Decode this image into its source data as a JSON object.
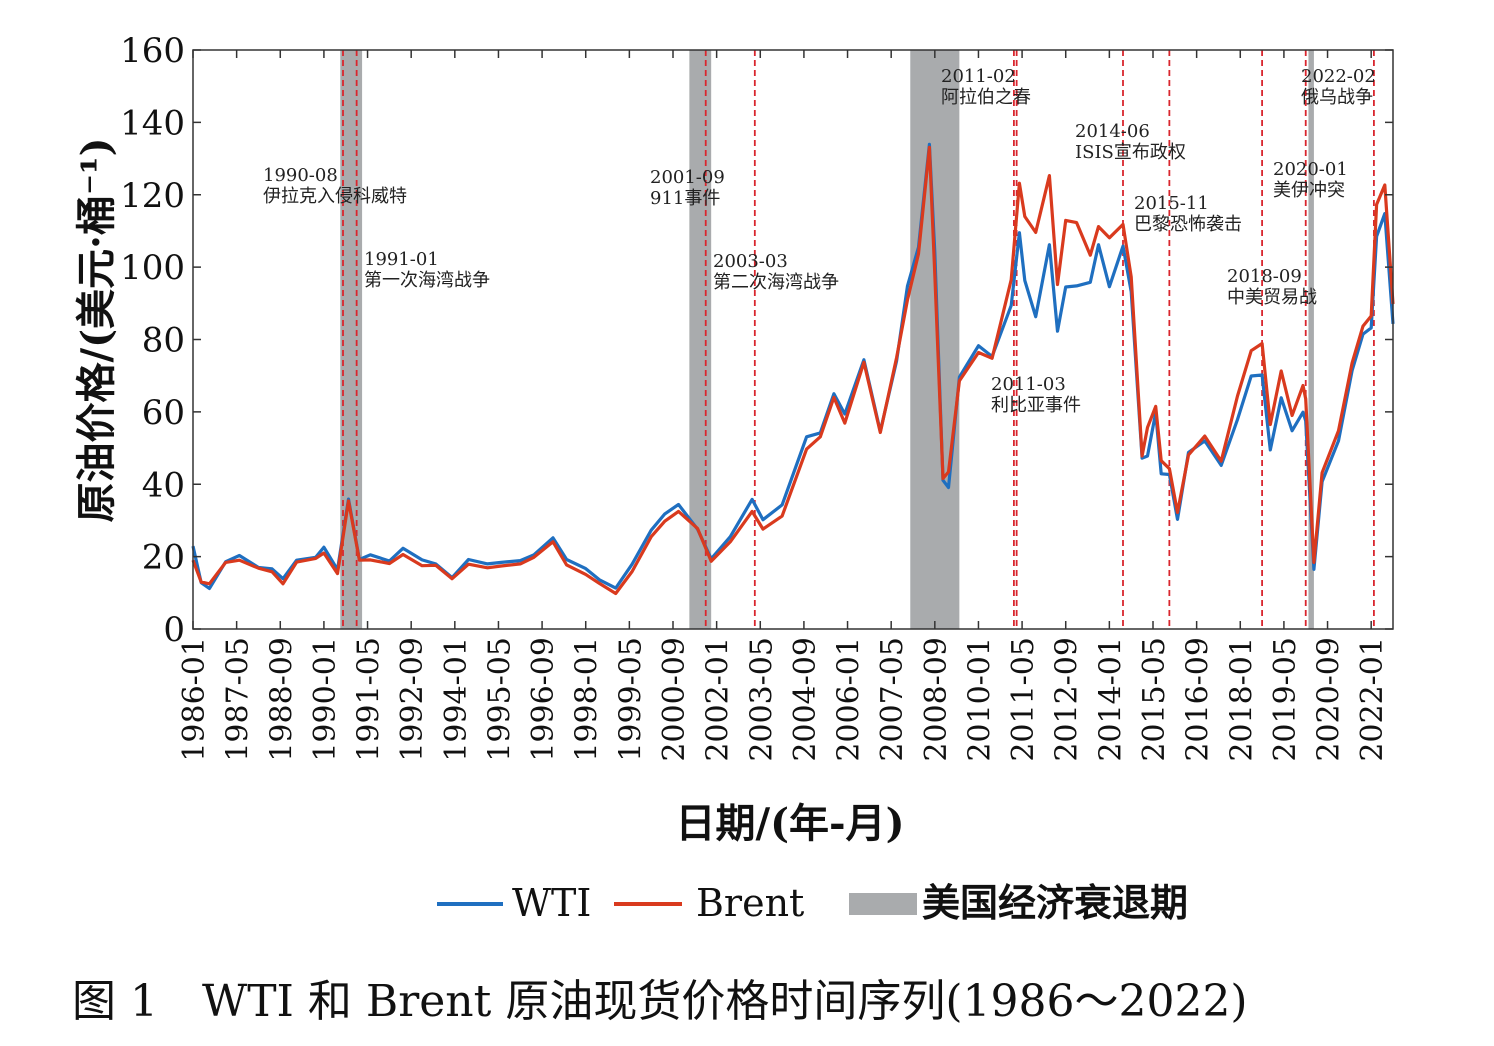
{
  "caption": "图 1　WTI 和 Brent 原油现货价格时间序列(1986～2022)",
  "chart_data": {
    "type": "line",
    "xlabel": "日期/(年-月)",
    "ylabel": "原油价格/(美元·桶⁻¹)",
    "ylim": [
      0,
      160
    ],
    "xlim": [
      "1986-01",
      "2022-09"
    ],
    "yticks": [
      0,
      20,
      40,
      60,
      80,
      100,
      120,
      140,
      160
    ],
    "xticks": [
      "1986-01",
      "1987-05",
      "1988-09",
      "1990-01",
      "1991-05",
      "1992-09",
      "1994-01",
      "1995-05",
      "1996-09",
      "1998-01",
      "1999-05",
      "2000-09",
      "2002-01",
      "2003-05",
      "2004-09",
      "2006-01",
      "2007-05",
      "2008-09",
      "2010-01",
      "2011-05",
      "2012-09",
      "2014-01",
      "2015-05",
      "2016-09",
      "2018-01",
      "2019-05",
      "2020-09",
      "2022-01"
    ],
    "colors": {
      "WTI": "#1f6fc0",
      "Brent": "#d93a1e",
      "recession": "#a9abad",
      "event_line": "#d9262e"
    },
    "legend": {
      "wti": "WTI",
      "brent": "Brent",
      "recession": "美国经济衰退期",
      "position": "bottom"
    },
    "recessions": [
      [
        "1990-07",
        "1991-03"
      ],
      [
        "2001-03",
        "2001-11"
      ],
      [
        "2007-12",
        "2009-06"
      ],
      [
        "2020-02",
        "2020-04"
      ]
    ],
    "events": [
      {
        "date": "1990-08",
        "lines": [
          "1990-08",
          "伊拉克入侵科威特"
        ]
      },
      {
        "date": "1991-01",
        "lines": [
          "1991-01",
          "第一次海湾战争"
        ]
      },
      {
        "date": "2001-09",
        "lines": [
          "2001-09",
          "911事件"
        ]
      },
      {
        "date": "2003-03",
        "lines": [
          "2003-03",
          "第二次海湾战争"
        ]
      },
      {
        "date": "2011-02",
        "lines": [
          "2011-02",
          "阿拉伯之春"
        ]
      },
      {
        "date": "2011-03",
        "lines": [
          "2011-03",
          "利比亚事件"
        ]
      },
      {
        "date": "2014-06",
        "lines": [
          "2014-06",
          "ISIS宣布政权"
        ]
      },
      {
        "date": "2015-11",
        "lines": [
          "2015-11",
          "巴黎恐怖袭击"
        ]
      },
      {
        "date": "2018-09",
        "lines": [
          "2018-09",
          "中美贸易战"
        ]
      },
      {
        "date": "2020-01",
        "lines": [
          "2020-01",
          "美伊冲突"
        ]
      },
      {
        "date": "2022-02",
        "lines": [
          "2022-02",
          "俄乌战争"
        ]
      }
    ],
    "series": [
      {
        "name": "WTI",
        "x": [
          "1986-01",
          "1986-04",
          "1986-07",
          "1987-01",
          "1987-06",
          "1988-01",
          "1988-06",
          "1988-10",
          "1989-03",
          "1989-10",
          "1990-01",
          "1990-06",
          "1990-10",
          "1991-02",
          "1991-06",
          "1992-01",
          "1992-06",
          "1993-01",
          "1993-06",
          "1993-12",
          "1994-06",
          "1995-01",
          "1995-06",
          "1996-01",
          "1996-06",
          "1997-01",
          "1997-06",
          "1998-01",
          "1998-06",
          "1998-12",
          "1999-06",
          "2000-01",
          "2000-06",
          "2000-11",
          "2001-06",
          "2001-11",
          "2002-06",
          "2003-02",
          "2003-06",
          "2004-01",
          "2004-10",
          "2005-03",
          "2005-08",
          "2005-12",
          "2006-07",
          "2007-01",
          "2007-07",
          "2007-11",
          "2008-03",
          "2008-07",
          "2008-09",
          "2008-12",
          "2009-02",
          "2009-06",
          "2010-01",
          "2010-06",
          "2011-01",
          "2011-04",
          "2011-06",
          "2011-10",
          "2012-03",
          "2012-06",
          "2012-09",
          "2013-01",
          "2013-06",
          "2013-09",
          "2014-01",
          "2014-06",
          "2014-09",
          "2015-01",
          "2015-03",
          "2015-06",
          "2015-08",
          "2015-11",
          "2016-02",
          "2016-06",
          "2016-12",
          "2017-06",
          "2017-12",
          "2018-05",
          "2018-09",
          "2018-12",
          "2019-04",
          "2019-08",
          "2019-12",
          "2020-01",
          "2020-04",
          "2020-07",
          "2021-01",
          "2021-06",
          "2021-10",
          "2022-01",
          "2022-03",
          "2022-06",
          "2022-09"
        ],
        "values": [
          22.9,
          12.8,
          11.2,
          18.6,
          20.3,
          17.0,
          16.6,
          13.9,
          19.0,
          19.8,
          22.6,
          16.4,
          35.9,
          19.2,
          20.5,
          18.8,
          22.3,
          19.1,
          18.0,
          14.2,
          19.2,
          18.0,
          18.4,
          18.9,
          20.5,
          25.2,
          19.2,
          16.7,
          13.6,
          11.3,
          17.9,
          27.3,
          31.8,
          34.4,
          27.6,
          19.4,
          25.5,
          35.8,
          30.2,
          34.3,
          53.1,
          54.2,
          65.0,
          59.4,
          74.4,
          54.6,
          74.1,
          94.8,
          105.5,
          133.9,
          104.1,
          41.1,
          39.1,
          69.6,
          78.3,
          75.3,
          89.4,
          109.5,
          96.3,
          86.3,
          106.2,
          82.3,
          94.5,
          94.8,
          95.8,
          106.2,
          94.6,
          105.8,
          93.2,
          47.2,
          47.8,
          59.8,
          42.9,
          42.7,
          30.3,
          48.8,
          52.0,
          45.2,
          57.9,
          69.9,
          70.2,
          49.5,
          63.9,
          54.8,
          59.9,
          57.5,
          16.5,
          40.7,
          52.0,
          71.4,
          81.5,
          83.2,
          108.5,
          114.8,
          84.3
        ]
      },
      {
        "name": "Brent",
        "x": [
          "1986-01",
          "1986-04",
          "1986-07",
          "1987-01",
          "1987-06",
          "1988-01",
          "1988-06",
          "1988-10",
          "1989-03",
          "1989-10",
          "1990-01",
          "1990-06",
          "1990-10",
          "1991-02",
          "1991-06",
          "1992-01",
          "1992-06",
          "1993-01",
          "1993-06",
          "1993-12",
          "1994-06",
          "1995-01",
          "1995-06",
          "1996-01",
          "1996-06",
          "1997-01",
          "1997-06",
          "1998-01",
          "1998-06",
          "1998-12",
          "1999-06",
          "2000-01",
          "2000-06",
          "2000-11",
          "2001-06",
          "2001-11",
          "2002-06",
          "2003-02",
          "2003-06",
          "2004-01",
          "2004-10",
          "2005-03",
          "2005-08",
          "2005-12",
          "2006-07",
          "2007-01",
          "2007-07",
          "2007-11",
          "2008-03",
          "2008-07",
          "2008-09",
          "2008-12",
          "2009-02",
          "2009-06",
          "2010-01",
          "2010-06",
          "2011-01",
          "2011-04",
          "2011-06",
          "2011-10",
          "2012-03",
          "2012-06",
          "2012-09",
          "2013-01",
          "2013-06",
          "2013-09",
          "2014-01",
          "2014-06",
          "2014-09",
          "2015-01",
          "2015-03",
          "2015-06",
          "2015-08",
          "2015-11",
          "2016-02",
          "2016-06",
          "2016-12",
          "2017-06",
          "2017-12",
          "2018-05",
          "2018-09",
          "2018-12",
          "2019-04",
          "2019-08",
          "2019-12",
          "2020-01",
          "2020-04",
          "2020-07",
          "2021-01",
          "2021-06",
          "2021-10",
          "2022-01",
          "2022-03",
          "2022-06",
          "2022-09"
        ],
        "values": [
          19.0,
          13.0,
          12.5,
          18.4,
          19.0,
          16.8,
          15.8,
          12.5,
          18.5,
          19.5,
          21.0,
          15.3,
          35.4,
          19.0,
          19.1,
          18.1,
          20.6,
          17.5,
          17.6,
          13.9,
          17.9,
          16.9,
          17.4,
          18.0,
          19.8,
          24.1,
          17.7,
          15.1,
          12.6,
          9.8,
          15.9,
          25.5,
          29.8,
          32.5,
          27.8,
          18.7,
          24.1,
          32.5,
          27.6,
          31.2,
          49.7,
          53.1,
          64.0,
          56.9,
          73.7,
          54.3,
          75.0,
          91.0,
          103.7,
          133.1,
          98.0,
          41.6,
          43.4,
          68.6,
          76.4,
          74.8,
          96.5,
          123.2,
          114.0,
          109.6,
          125.3,
          95.2,
          112.9,
          112.3,
          103.3,
          111.2,
          108.1,
          111.8,
          97.3,
          47.8,
          55.7,
          61.5,
          46.5,
          44.3,
          32.2,
          48.1,
          53.3,
          46.4,
          64.4,
          76.9,
          78.9,
          56.5,
          71.3,
          59.0,
          67.3,
          63.6,
          18.4,
          43.2,
          54.8,
          73.5,
          83.7,
          86.5,
          117.3,
          122.7,
          89.8
        ]
      }
    ]
  }
}
